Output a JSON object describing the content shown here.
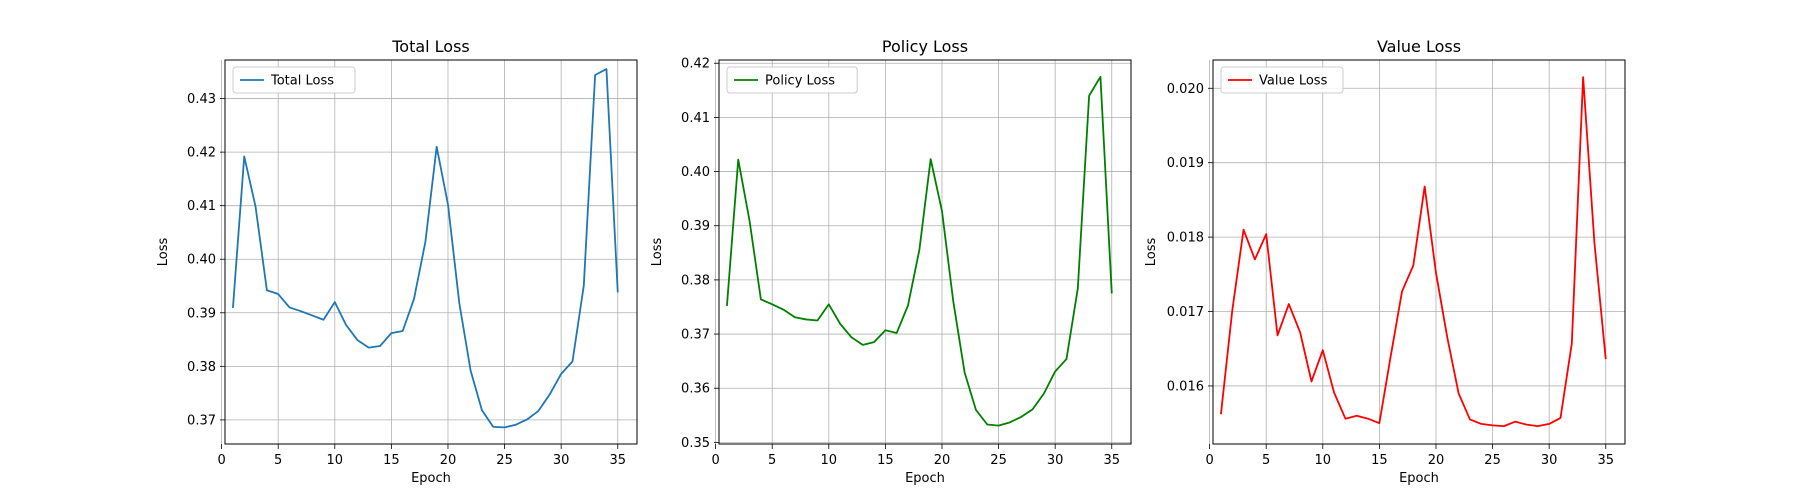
{
  "chart_data": [
    {
      "type": "line",
      "title": "Total Loss",
      "xlabel": "Epoch",
      "ylabel": "Loss",
      "xlim": [
        0.3,
        36.7
      ],
      "ylim": [
        0.3655,
        0.4372
      ],
      "xticks": [
        0,
        5,
        10,
        15,
        20,
        25,
        30,
        35
      ],
      "yticks": [
        0.37,
        0.38,
        0.39,
        0.4,
        0.41,
        0.42,
        0.43
      ],
      "ytick_labels": [
        "0.37",
        "0.38",
        "0.39",
        "0.40",
        "0.41",
        "0.42",
        "0.43"
      ],
      "grid": true,
      "legend": "upper left",
      "color": "#1f77b4",
      "series": [
        {
          "name": "Total Loss",
          "x": [
            1,
            2,
            3,
            4,
            5,
            6,
            7,
            8,
            9,
            10,
            11,
            12,
            13,
            14,
            15,
            16,
            17,
            18,
            19,
            20,
            21,
            22,
            23,
            24,
            25,
            26,
            27,
            28,
            29,
            30,
            31,
            32,
            33,
            34,
            35
          ],
          "values": [
            0.3909,
            0.4192,
            0.4098,
            0.3942,
            0.3935,
            0.391,
            0.3903,
            0.3895,
            0.3887,
            0.392,
            0.3877,
            0.3849,
            0.3835,
            0.3838,
            0.3862,
            0.3866,
            0.3926,
            0.4032,
            0.421,
            0.4102,
            0.3918,
            0.3792,
            0.3718,
            0.3687,
            0.3686,
            0.3691,
            0.3701,
            0.3717,
            0.3748,
            0.3786,
            0.3809,
            0.3951,
            0.4344,
            0.4355,
            0.3938
          ]
        }
      ]
    },
    {
      "type": "line",
      "title": "Policy Loss",
      "xlabel": "Epoch",
      "ylabel": "Loss",
      "xlim": [
        0.3,
        36.7
      ],
      "ylim": [
        0.3497,
        0.4206
      ],
      "xticks": [
        0,
        5,
        10,
        15,
        20,
        25,
        30,
        35
      ],
      "yticks": [
        0.35,
        0.36,
        0.37,
        0.38,
        0.39,
        0.4,
        0.41,
        0.42
      ],
      "ytick_labels": [
        "0.35",
        "0.36",
        "0.37",
        "0.38",
        "0.39",
        "0.40",
        "0.41",
        "0.42"
      ],
      "grid": true,
      "legend": "upper left",
      "color": "#008000",
      "series": [
        {
          "name": "Policy Loss",
          "x": [
            1,
            2,
            3,
            4,
            5,
            6,
            7,
            8,
            9,
            10,
            11,
            12,
            13,
            14,
            15,
            16,
            17,
            18,
            19,
            20,
            21,
            22,
            23,
            24,
            25,
            26,
            27,
            28,
            29,
            30,
            31,
            32,
            33,
            34,
            35
          ],
          "values": [
            0.3752,
            0.4022,
            0.3909,
            0.3764,
            0.3755,
            0.3745,
            0.3731,
            0.3727,
            0.3725,
            0.3755,
            0.3719,
            0.3694,
            0.368,
            0.3685,
            0.3707,
            0.3702,
            0.3753,
            0.3855,
            0.4023,
            0.3927,
            0.376,
            0.3629,
            0.356,
            0.3533,
            0.3531,
            0.3537,
            0.3547,
            0.3561,
            0.359,
            0.3631,
            0.3654,
            0.3784,
            0.414,
            0.4175,
            0.3775
          ]
        }
      ]
    },
    {
      "type": "line",
      "title": "Value Loss",
      "xlabel": "Epoch",
      "ylabel": "Loss",
      "xlim": [
        0.3,
        36.7
      ],
      "ylim": [
        0.01522,
        0.02038
      ],
      "xticks": [
        0,
        5,
        10,
        15,
        20,
        25,
        30,
        35
      ],
      "yticks": [
        0.016,
        0.017,
        0.018,
        0.019,
        0.02
      ],
      "ytick_labels": [
        "0.016",
        "0.017",
        "0.018",
        "0.019",
        "0.020"
      ],
      "grid": true,
      "legend": "upper left",
      "color": "#ff0000",
      "series": [
        {
          "name": "Value Loss",
          "x": [
            1,
            2,
            3,
            4,
            5,
            6,
            7,
            8,
            9,
            10,
            11,
            12,
            13,
            14,
            15,
            16,
            17,
            18,
            19,
            20,
            21,
            22,
            23,
            24,
            25,
            26,
            27,
            28,
            29,
            30,
            31,
            32,
            33,
            34,
            35
          ],
          "values": [
            0.01562,
            0.01701,
            0.0181,
            0.0177,
            0.01804,
            0.01668,
            0.0171,
            0.01672,
            0.01606,
            0.01648,
            0.01591,
            0.01556,
            0.0156,
            0.01556,
            0.0155,
            0.0164,
            0.01727,
            0.01762,
            0.01868,
            0.01752,
            0.01665,
            0.0159,
            0.01555,
            0.01549,
            0.01547,
            0.01546,
            0.01552,
            0.01548,
            0.01546,
            0.01549,
            0.01557,
            0.01657,
            0.02015,
            0.01792,
            0.01636
          ]
        }
      ]
    }
  ]
}
